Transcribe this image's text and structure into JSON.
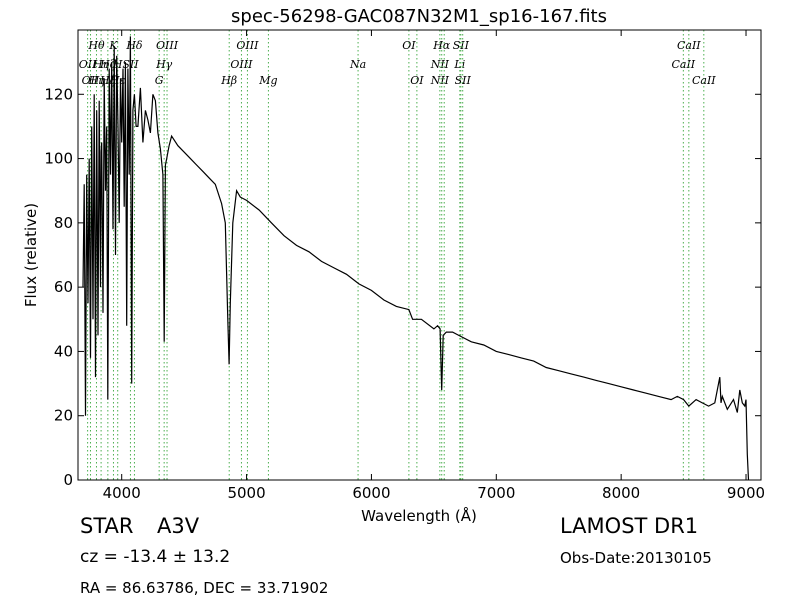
{
  "chart_data": {
    "type": "line",
    "title": "spec-56298-GAC087N32M1_sp16-167.fits",
    "xlabel": "Wavelength (Å)",
    "ylabel": "Flux (relative)",
    "xlim": [
      3650,
      9120
    ],
    "ylim": [
      0,
      140
    ],
    "x_ticks": [
      4000,
      5000,
      6000,
      7000,
      8000,
      9000
    ],
    "y_ticks": [
      0,
      20,
      40,
      60,
      80,
      100,
      120
    ],
    "line_color": "#000000",
    "marker_color": "#4caf50",
    "series": [
      {
        "x": [
          3690,
          3700,
          3710,
          3720,
          3730,
          3740,
          3750,
          3760,
          3770,
          3780,
          3790,
          3800,
          3810,
          3820,
          3830,
          3835,
          3840,
          3850,
          3860,
          3870,
          3880,
          3889,
          3900,
          3910,
          3920,
          3930,
          3940,
          3950,
          3960,
          3970,
          3980,
          3990,
          4000,
          4010,
          4020,
          4030,
          4040,
          4050,
          4060,
          4070,
          4080,
          4090,
          4102,
          4115,
          4130,
          4150,
          4170,
          4190,
          4210,
          4230,
          4250,
          4270,
          4290,
          4310,
          4330,
          4340,
          4350,
          4360,
          4380,
          4400,
          4450,
          4500,
          4550,
          4600,
          4650,
          4700,
          4750,
          4800,
          4830,
          4850,
          4860,
          4870,
          4890,
          4920,
          4950,
          5000,
          5100,
          5200,
          5300,
          5400,
          5500,
          5600,
          5700,
          5800,
          5900,
          6000,
          6100,
          6200,
          6300,
          6330,
          6400,
          6500,
          6530,
          6550,
          6563,
          6575,
          6600,
          6650,
          6700,
          6800,
          6900,
          7000,
          7100,
          7200,
          7300,
          7400,
          7500,
          7600,
          7700,
          7800,
          7900,
          8000,
          8100,
          8200,
          8300,
          8400,
          8450,
          8500,
          8542,
          8600,
          8650,
          8700,
          8750,
          8790,
          8800,
          8810,
          8850,
          8900,
          8930,
          8950,
          8970,
          8990,
          9000,
          9010,
          9020
        ],
        "y": [
          60,
          92,
          20,
          95,
          55,
          100,
          38,
          110,
          50,
          120,
          32,
          115,
          45,
          118,
          60,
          102,
          105,
          52,
          125,
          90,
          110,
          25,
          128,
          95,
          130,
          78,
          135,
          70,
          132,
          110,
          80,
          125,
          105,
          128,
          85,
          130,
          48,
          128,
          95,
          138,
          30,
          115,
          120,
          110,
          110,
          122,
          105,
          115,
          112,
          108,
          120,
          118,
          108,
          103,
          95,
          43,
          98,
          100,
          104,
          107,
          104,
          102,
          100,
          98,
          96,
          94,
          92,
          86,
          80,
          50,
          36,
          55,
          80,
          90,
          88,
          87,
          84,
          80,
          76,
          73,
          71,
          68,
          66,
          64,
          61,
          59,
          56,
          54,
          53,
          50,
          50,
          47,
          48,
          47,
          28,
          45,
          46,
          46,
          45,
          43,
          42,
          40,
          39,
          38,
          37,
          35,
          34,
          33,
          32,
          31,
          30,
          29,
          28,
          27,
          26,
          25,
          26,
          25,
          23,
          25,
          24,
          23,
          24,
          32,
          24,
          26,
          22,
          25,
          21,
          28,
          24,
          23,
          25,
          8,
          0
        ]
      }
    ],
    "line_markers": [
      {
        "x": 3727,
        "labels": [
          {
            "text": "OII",
            "row": 2
          }
        ]
      },
      {
        "x": 3750,
        "labels": [
          {
            "text": "OII",
            "row": 3
          }
        ]
      },
      {
        "x": 3798,
        "labels": [
          {
            "text": "Hθ",
            "row": 1
          },
          {
            "text": "Hη",
            "row": 3
          }
        ]
      },
      {
        "x": 3835,
        "labels": [
          {
            "text": "Hη",
            "row": 2
          }
        ]
      },
      {
        "x": 3889,
        "labels": [
          {
            "text": "Hζ",
            "row": 2
          },
          {
            "text": "Hζ",
            "row": 3
          }
        ]
      },
      {
        "x": 3934,
        "labels": [
          {
            "text": "K",
            "row": 1
          }
        ]
      },
      {
        "x": 3968,
        "labels": [
          {
            "text": "H",
            "row": 2
          },
          {
            "text": "Hε",
            "row": 3
          }
        ]
      },
      {
        "x": 4102,
        "labels": [
          {
            "text": "Hδ",
            "row": 1
          }
        ]
      },
      {
        "x": 4070,
        "labels": [
          {
            "text": "SII",
            "row": 2
          }
        ]
      },
      {
        "x": 4300,
        "labels": [
          {
            "text": "G",
            "row": 3
          }
        ]
      },
      {
        "x": 4340,
        "labels": [
          {
            "text": "Hγ",
            "row": 2
          }
        ]
      },
      {
        "x": 4363,
        "labels": [
          {
            "text": "OIII",
            "row": 1
          }
        ]
      },
      {
        "x": 4861,
        "labels": [
          {
            "text": "Hβ",
            "row": 3
          }
        ]
      },
      {
        "x": 4959,
        "labels": [
          {
            "text": "OIII",
            "row": 2
          }
        ]
      },
      {
        "x": 5007,
        "labels": [
          {
            "text": "OIII",
            "row": 1
          }
        ]
      },
      {
        "x": 5175,
        "labels": [
          {
            "text": "Mg",
            "row": 3
          }
        ]
      },
      {
        "x": 5893,
        "labels": [
          {
            "text": "Na",
            "row": 2
          }
        ]
      },
      {
        "x": 6300,
        "labels": [
          {
            "text": "OI",
            "row": 1
          }
        ]
      },
      {
        "x": 6364,
        "labels": [
          {
            "text": "OI",
            "row": 3
          }
        ]
      },
      {
        "x": 6548,
        "labels": [
          {
            "text": "NII",
            "row": 2
          },
          {
            "text": "NII",
            "row": 3
          }
        ]
      },
      {
        "x": 6563,
        "labels": [
          {
            "text": "Hα",
            "row": 1
          }
        ]
      },
      {
        "x": 6583,
        "labels": []
      },
      {
        "x": 6708,
        "labels": [
          {
            "text": "Li",
            "row": 2
          }
        ]
      },
      {
        "x": 6716,
        "labels": [
          {
            "text": "SII",
            "row": 1
          }
        ]
      },
      {
        "x": 6731,
        "labels": [
          {
            "text": "SII",
            "row": 3
          }
        ]
      },
      {
        "x": 8498,
        "labels": [
          {
            "text": "CaII",
            "row": 2
          }
        ]
      },
      {
        "x": 8542,
        "labels": [
          {
            "text": "CaII",
            "row": 1
          }
        ]
      },
      {
        "x": 8662,
        "labels": [
          {
            "text": "CaII",
            "row": 3
          }
        ]
      }
    ]
  },
  "info": {
    "object_class": "STAR",
    "subclass": "A3V",
    "redshift": "cz = -13.4 ± 13.2",
    "coords": "RA = 86.63786, DEC = 33.71902",
    "survey": "LAMOST DR1",
    "obs_date": "Obs-Date:20130105"
  }
}
